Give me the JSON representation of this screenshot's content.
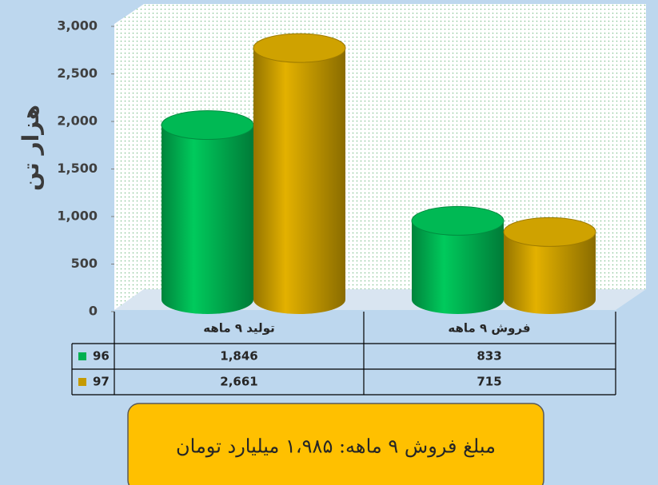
{
  "chart_data": {
    "type": "bar",
    "style": "3d-cylinder",
    "y_label": "هزار تن",
    "categories": [
      "تولید ۹ ماهه",
      "فروش ۹ ماهه"
    ],
    "series": [
      {
        "name": "96",
        "color": "#00b050",
        "values": [
          1846,
          833
        ],
        "value_labels": [
          "1,846",
          "833"
        ]
      },
      {
        "name": "97",
        "color": "#c59a00",
        "values": [
          2661,
          715
        ],
        "value_labels": [
          "2,661",
          "715"
        ]
      }
    ],
    "ylim": [
      0,
      3000
    ],
    "yticks": [
      0,
      500,
      {
        "value": 1000,
        "label": "1,000"
      },
      {
        "value": 1500,
        "label": "1,500"
      },
      {
        "value": 2000,
        "label": "2,000"
      },
      {
        "value": 2500,
        "label": "2,500"
      },
      {
        "value": 3000,
        "label": "3,000"
      }
    ],
    "data_table": true,
    "annotation": "مبلغ فروش ۹ ماهه: ۱،۹۸۵ میلیارد تومان"
  }
}
